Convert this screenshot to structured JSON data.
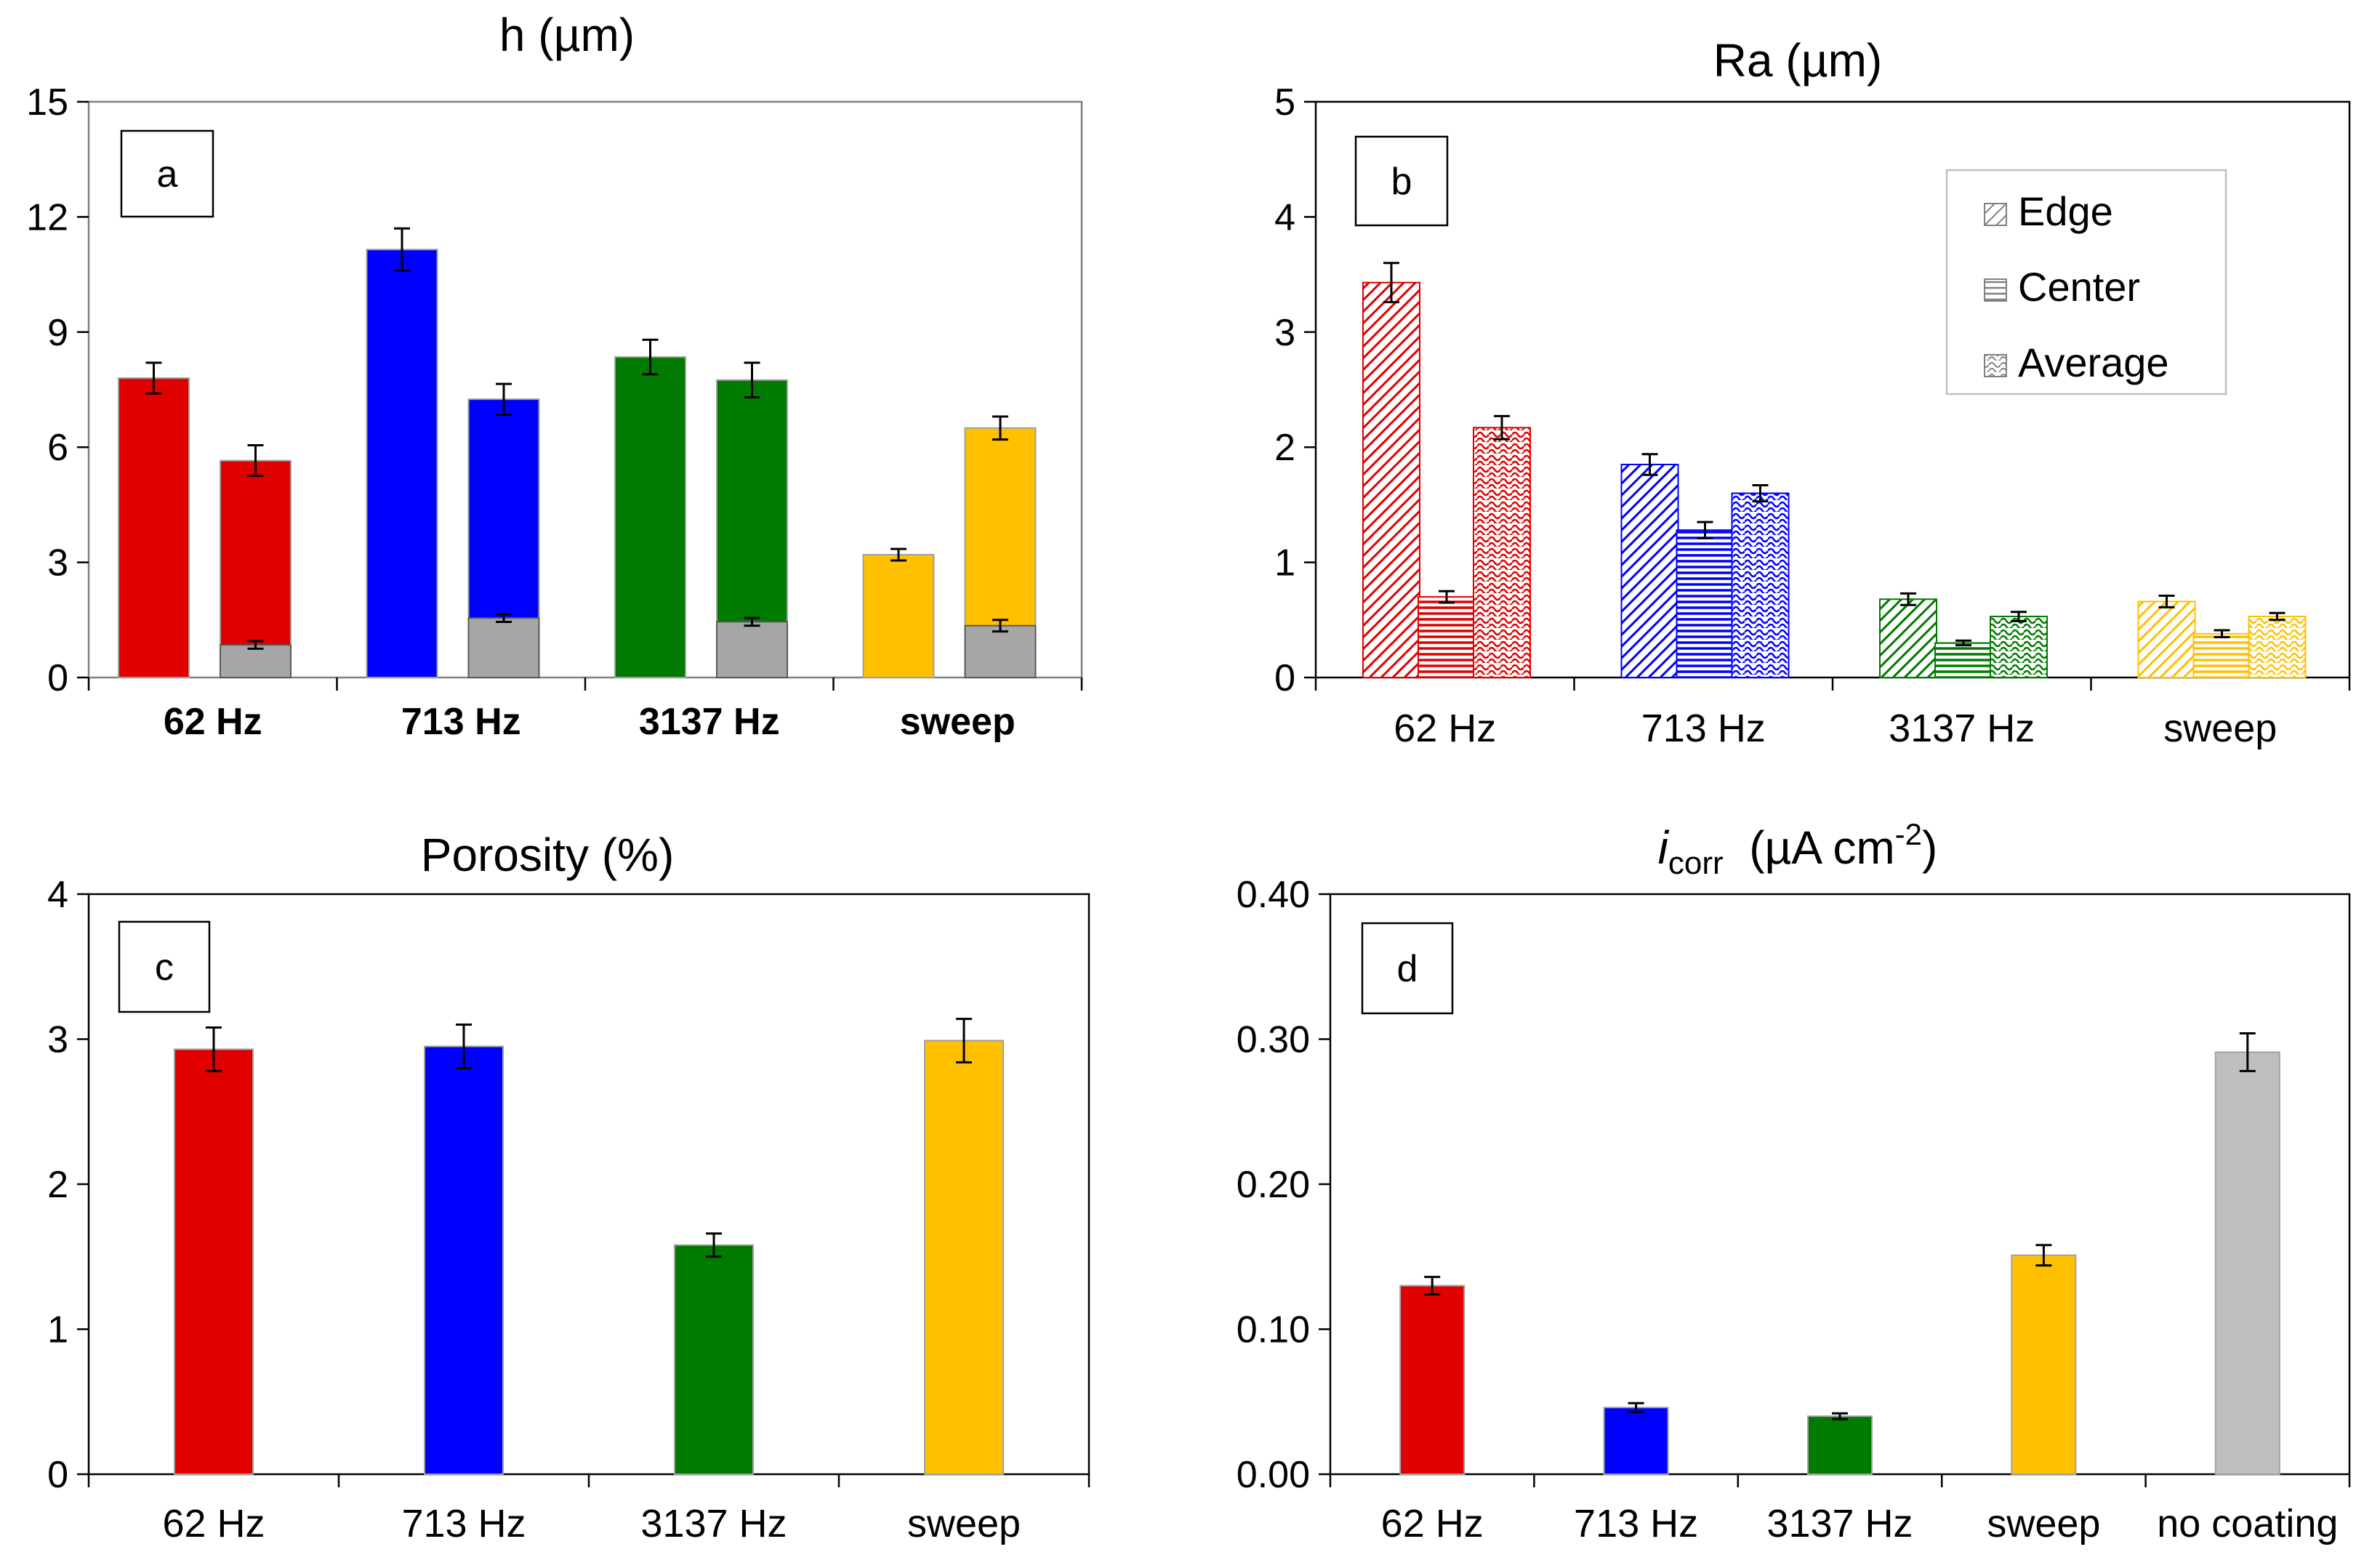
{
  "colors": {
    "red": "#e00000",
    "blue": "#0000ff",
    "green": "#007a00",
    "yellow": "#ffc000",
    "gray": "#a6a6a6",
    "nocoat": "#bfbfbf"
  },
  "chart_data": [
    {
      "id": "a",
      "type": "bar",
      "title": "h (µm)",
      "panel_label": "a",
      "categories": [
        "62 Hz",
        "713 Hz",
        "3137 Hz",
        "sweep"
      ],
      "ylim": [
        0,
        15
      ],
      "yticks": [
        "0",
        "3",
        "6",
        "9",
        "12",
        "15"
      ],
      "tick_values": [
        0,
        3,
        6,
        9,
        12,
        15
      ],
      "bars": [
        {
          "group": 0,
          "slot": 0,
          "value": 7.8,
          "err": 0.4,
          "color": "red",
          "base": null
        },
        {
          "group": 0,
          "slot": 1,
          "value": 5.65,
          "err": 0.4,
          "color": "red",
          "base": 0.85,
          "base_err": 0.1
        },
        {
          "group": 1,
          "slot": 0,
          "value": 11.15,
          "err": 0.55,
          "color": "blue",
          "base": null
        },
        {
          "group": 1,
          "slot": 1,
          "value": 7.25,
          "err": 0.4,
          "color": "blue",
          "base": 1.55,
          "base_err": 0.1
        },
        {
          "group": 2,
          "slot": 0,
          "value": 8.35,
          "err": 0.45,
          "color": "green",
          "base": null
        },
        {
          "group": 2,
          "slot": 1,
          "value": 7.75,
          "err": 0.45,
          "color": "green",
          "base": 1.45,
          "base_err": 0.1
        },
        {
          "group": 3,
          "slot": 0,
          "value": 3.2,
          "err": 0.15,
          "color": "yellow",
          "base": null
        },
        {
          "group": 3,
          "slot": 1,
          "value": 6.5,
          "err": 0.3,
          "color": "yellow",
          "base": 1.35,
          "base_err": 0.15
        }
      ]
    },
    {
      "id": "b",
      "type": "bar",
      "title": "Ra (µm)",
      "panel_label": "b",
      "categories": [
        "62 Hz",
        "713 Hz",
        "3137 Hz",
        "sweep"
      ],
      "ylim": [
        0,
        5
      ],
      "yticks": [
        "0",
        "1",
        "2",
        "3",
        "4",
        "5"
      ],
      "tick_values": [
        0,
        1,
        2,
        3,
        4,
        5
      ],
      "legend": [
        "Edge",
        "Center",
        "Average"
      ],
      "series": [
        {
          "name": "Edge",
          "pattern": "diag",
          "values": [
            3.43,
            1.85,
            0.68,
            0.66
          ],
          "errors": [
            0.17,
            0.09,
            0.05,
            0.05
          ]
        },
        {
          "name": "Center",
          "pattern": "horiz",
          "values": [
            0.7,
            1.28,
            0.3,
            0.38
          ],
          "errors": [
            0.05,
            0.07,
            0.02,
            0.03
          ]
        },
        {
          "name": "Average",
          "pattern": "wave",
          "values": [
            2.17,
            1.6,
            0.53,
            0.53
          ],
          "errors": [
            0.1,
            0.07,
            0.04,
            0.03
          ]
        }
      ],
      "group_colors": [
        "red",
        "blue",
        "green",
        "yellow"
      ]
    },
    {
      "id": "c",
      "type": "bar",
      "title": "Porosity (%)",
      "panel_label": "c",
      "categories": [
        "62 Hz",
        "713 Hz",
        "3137 Hz",
        "sweep"
      ],
      "ylim": [
        0,
        4
      ],
      "yticks": [
        "0",
        "1",
        "2",
        "3",
        "4"
      ],
      "tick_values": [
        0,
        1,
        2,
        3,
        4
      ],
      "values": [
        2.93,
        2.95,
        1.58,
        2.99
      ],
      "errors": [
        0.15,
        0.15,
        0.08,
        0.15
      ],
      "colors": [
        "red",
        "blue",
        "green",
        "yellow"
      ]
    },
    {
      "id": "d",
      "type": "bar",
      "title_main": "i",
      "title_sub": "corr",
      "title_unit": "(µA cm",
      "title_sup": "-2",
      "title_close": ")",
      "panel_label": "d",
      "categories": [
        "62 Hz",
        "713 Hz",
        "3137 Hz",
        "sweep",
        "no coating"
      ],
      "ylim": [
        0,
        0.4
      ],
      "yticks": [
        "0.00",
        "0.10",
        "0.20",
        "0.30",
        "0.40"
      ],
      "tick_values": [
        0,
        0.1,
        0.2,
        0.3,
        0.4
      ],
      "values": [
        0.13,
        0.046,
        0.04,
        0.151,
        0.291
      ],
      "errors": [
        0.006,
        0.003,
        0.002,
        0.007,
        0.013
      ],
      "colors": [
        "red",
        "blue",
        "green",
        "yellow",
        "nocoat"
      ]
    }
  ]
}
